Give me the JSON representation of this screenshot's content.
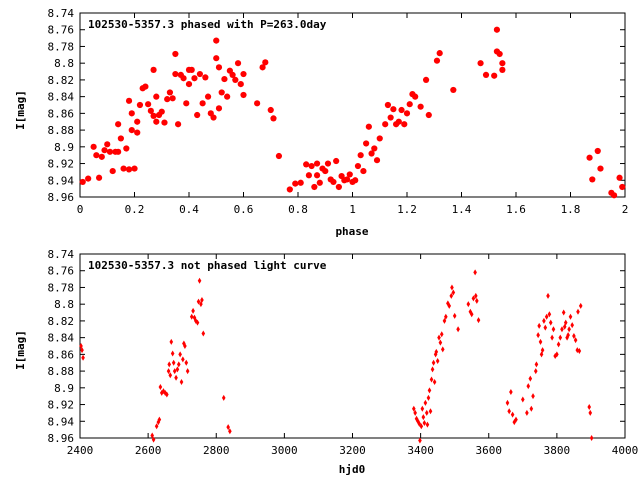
{
  "chart_data": [
    {
      "type": "scatter",
      "title": "102530-5357.3 phased with P=263.0day",
      "xlabel": "phase",
      "ylabel": "I[mag]",
      "xlim": [
        0,
        2
      ],
      "ylim": [
        8.74,
        8.96
      ],
      "y_inverted": true,
      "xticks": [
        "0",
        "0.2",
        "0.4",
        "0.6",
        "0.8",
        "1",
        "1.2",
        "1.4",
        "1.6",
        "1.8",
        "2"
      ],
      "xtick_values": [
        0,
        0.2,
        0.4,
        0.6,
        0.8,
        1,
        1.2,
        1.4,
        1.6,
        1.8,
        2
      ],
      "yticks": [
        "8.74",
        "8.76",
        "8.78",
        "8.8",
        "8.82",
        "8.84",
        "8.86",
        "8.88",
        "8.9",
        "8.92",
        "8.94",
        "8.96"
      ],
      "ytick_values": [
        8.74,
        8.76,
        8.78,
        8.8,
        8.82,
        8.84,
        8.86,
        8.88,
        8.9,
        8.92,
        8.94,
        8.96
      ],
      "marker_color": "#ff0000",
      "marker": "filled-point",
      "points": [
        [
          0.01,
          8.942
        ],
        [
          0.03,
          8.938
        ],
        [
          0.05,
          8.9
        ],
        [
          0.06,
          8.91
        ],
        [
          0.07,
          8.937
        ],
        [
          0.08,
          8.912
        ],
        [
          0.09,
          8.904
        ],
        [
          0.1,
          8.897
        ],
        [
          0.11,
          8.906
        ],
        [
          0.12,
          8.929
        ],
        [
          0.13,
          8.906
        ],
        [
          0.14,
          8.873
        ],
        [
          0.14,
          8.906
        ],
        [
          0.15,
          8.89
        ],
        [
          0.16,
          8.926
        ],
        [
          0.17,
          8.902
        ],
        [
          0.18,
          8.927
        ],
        [
          0.18,
          8.845
        ],
        [
          0.19,
          8.88
        ],
        [
          0.19,
          8.86
        ],
        [
          0.2,
          8.926
        ],
        [
          0.21,
          8.883
        ],
        [
          0.21,
          8.87
        ],
        [
          0.22,
          8.85
        ],
        [
          0.23,
          8.83
        ],
        [
          0.24,
          8.828
        ],
        [
          0.25,
          8.849
        ],
        [
          0.26,
          8.857
        ],
        [
          0.27,
          8.863
        ],
        [
          0.27,
          8.808
        ],
        [
          0.28,
          8.84
        ],
        [
          0.28,
          8.87
        ],
        [
          0.29,
          8.862
        ],
        [
          0.3,
          8.858
        ],
        [
          0.31,
          8.871
        ],
        [
          0.32,
          8.843
        ],
        [
          0.33,
          8.835
        ],
        [
          0.34,
          8.842
        ],
        [
          0.35,
          8.813
        ],
        [
          0.35,
          8.789
        ],
        [
          0.36,
          8.873
        ],
        [
          0.37,
          8.814
        ],
        [
          0.38,
          8.818
        ],
        [
          0.39,
          8.848
        ],
        [
          0.4,
          8.825
        ],
        [
          0.4,
          8.808
        ],
        [
          0.41,
          8.808
        ],
        [
          0.42,
          8.818
        ],
        [
          0.43,
          8.862
        ],
        [
          0.44,
          8.813
        ],
        [
          0.45,
          8.848
        ],
        [
          0.46,
          8.817
        ],
        [
          0.47,
          8.84
        ],
        [
          0.48,
          8.86
        ],
        [
          0.49,
          8.865
        ],
        [
          0.5,
          8.794
        ],
        [
          0.5,
          8.773
        ],
        [
          0.51,
          8.854
        ],
        [
          0.51,
          8.805
        ],
        [
          0.52,
          8.835
        ],
        [
          0.53,
          8.819
        ],
        [
          0.54,
          8.84
        ],
        [
          0.55,
          8.809
        ],
        [
          0.56,
          8.814
        ],
        [
          0.57,
          8.82
        ],
        [
          0.58,
          8.8
        ],
        [
          0.59,
          8.825
        ],
        [
          0.6,
          8.838
        ],
        [
          0.6,
          8.813
        ],
        [
          0.65,
          8.848
        ],
        [
          0.67,
          8.805
        ],
        [
          0.68,
          8.799
        ],
        [
          0.7,
          8.856
        ],
        [
          0.71,
          8.866
        ],
        [
          0.73,
          8.911
        ],
        [
          0.77,
          8.951
        ],
        [
          0.79,
          8.944
        ],
        [
          0.81,
          8.943
        ],
        [
          0.83,
          8.921
        ],
        [
          0.84,
          8.934
        ],
        [
          0.85,
          8.923
        ],
        [
          0.86,
          8.948
        ],
        [
          0.87,
          8.934
        ],
        [
          0.87,
          8.92
        ],
        [
          0.88,
          8.943
        ],
        [
          0.89,
          8.926
        ],
        [
          0.9,
          8.929
        ],
        [
          0.91,
          8.92
        ],
        [
          0.92,
          8.939
        ],
        [
          0.93,
          8.942
        ],
        [
          0.94,
          8.917
        ],
        [
          0.95,
          8.948
        ],
        [
          0.96,
          8.935
        ],
        [
          0.97,
          8.94
        ],
        [
          0.98,
          8.939
        ],
        [
          0.99,
          8.933
        ],
        [
          1.0,
          8.942
        ],
        [
          1.01,
          8.94
        ],
        [
          1.02,
          8.923
        ],
        [
          1.03,
          8.91
        ],
        [
          1.04,
          8.929
        ],
        [
          1.05,
          8.896
        ],
        [
          1.06,
          8.876
        ],
        [
          1.07,
          8.908
        ],
        [
          1.08,
          8.902
        ],
        [
          1.09,
          8.916
        ],
        [
          1.1,
          8.89
        ],
        [
          1.12,
          8.873
        ],
        [
          1.13,
          8.85
        ],
        [
          1.14,
          8.865
        ],
        [
          1.15,
          8.855
        ],
        [
          1.16,
          8.873
        ],
        [
          1.17,
          8.87
        ],
        [
          1.18,
          8.856
        ],
        [
          1.19,
          8.873
        ],
        [
          1.2,
          8.86
        ],
        [
          1.21,
          8.849
        ],
        [
          1.22,
          8.837
        ],
        [
          1.23,
          8.84
        ],
        [
          1.25,
          8.852
        ],
        [
          1.27,
          8.82
        ],
        [
          1.28,
          8.862
        ],
        [
          1.31,
          8.797
        ],
        [
          1.32,
          8.788
        ],
        [
          1.37,
          8.832
        ],
        [
          1.47,
          8.8
        ],
        [
          1.49,
          8.814
        ],
        [
          1.52,
          8.815
        ],
        [
          1.53,
          8.76
        ],
        [
          1.53,
          8.786
        ],
        [
          1.54,
          8.789
        ],
        [
          1.55,
          8.808
        ],
        [
          1.55,
          8.8
        ],
        [
          1.87,
          8.913
        ],
        [
          1.88,
          8.939
        ],
        [
          1.9,
          8.905
        ],
        [
          1.91,
          8.926
        ],
        [
          1.95,
          8.955
        ],
        [
          1.96,
          8.958
        ],
        [
          1.98,
          8.937
        ],
        [
          1.99,
          8.948
        ]
      ]
    },
    {
      "type": "scatter",
      "title": "102530-5357.3 not phased light curve",
      "xlabel": "hjd0",
      "ylabel": "I[mag]",
      "xlim": [
        2400,
        4000
      ],
      "ylim": [
        8.74,
        8.96
      ],
      "y_inverted": true,
      "xticks": [
        "2400",
        "2600",
        "2800",
        "3000",
        "3200",
        "3400",
        "3600",
        "3800",
        "4000"
      ],
      "xtick_values": [
        2400,
        2600,
        2800,
        3000,
        3200,
        3400,
        3600,
        3800,
        4000
      ],
      "yticks": [
        "8.74",
        "8.76",
        "8.78",
        "8.8",
        "8.82",
        "8.84",
        "8.86",
        "8.88",
        "8.9",
        "8.92",
        "8.94",
        "8.96"
      ],
      "ytick_values": [
        8.74,
        8.76,
        8.78,
        8.8,
        8.82,
        8.84,
        8.86,
        8.88,
        8.9,
        8.92,
        8.94,
        8.96
      ],
      "marker_color": "#ff0000",
      "marker": "small-diamond",
      "points": [
        [
          2403,
          8.85
        ],
        [
          2406,
          8.855
        ],
        [
          2409,
          8.864
        ],
        [
          2612,
          8.957
        ],
        [
          2616,
          8.962
        ],
        [
          2625,
          8.946
        ],
        [
          2630,
          8.941
        ],
        [
          2633,
          8.938
        ],
        [
          2636,
          8.899
        ],
        [
          2640,
          8.906
        ],
        [
          2645,
          8.904
        ],
        [
          2650,
          8.906
        ],
        [
          2655,
          8.908
        ],
        [
          2660,
          8.88
        ],
        [
          2662,
          8.872
        ],
        [
          2665,
          8.885
        ],
        [
          2668,
          8.845
        ],
        [
          2672,
          8.859
        ],
        [
          2675,
          8.87
        ],
        [
          2678,
          8.88
        ],
        [
          2682,
          8.888
        ],
        [
          2686,
          8.878
        ],
        [
          2690,
          8.872
        ],
        [
          2694,
          8.86
        ],
        [
          2698,
          8.893
        ],
        [
          2702,
          8.866
        ],
        [
          2705,
          8.847
        ],
        [
          2708,
          8.85
        ],
        [
          2712,
          8.87
        ],
        [
          2716,
          8.88
        ],
        [
          2728,
          8.815
        ],
        [
          2732,
          8.808
        ],
        [
          2736,
          8.816
        ],
        [
          2740,
          8.82
        ],
        [
          2745,
          8.822
        ],
        [
          2748,
          8.797
        ],
        [
          2751,
          8.772
        ],
        [
          2755,
          8.8
        ],
        [
          2758,
          8.795
        ],
        [
          2762,
          8.835
        ],
        [
          2822,
          8.912
        ],
        [
          2835,
          8.947
        ],
        [
          2840,
          8.952
        ],
        [
          3380,
          8.925
        ],
        [
          3384,
          8.93
        ],
        [
          3388,
          8.937
        ],
        [
          3392,
          8.94
        ],
        [
          3396,
          8.943
        ],
        [
          3398,
          8.963
        ],
        [
          3402,
          8.946
        ],
        [
          3405,
          8.925
        ],
        [
          3408,
          8.935
        ],
        [
          3411,
          8.942
        ],
        [
          3414,
          8.918
        ],
        [
          3418,
          8.93
        ],
        [
          3420,
          8.944
        ],
        [
          3423,
          8.912
        ],
        [
          3426,
          8.903
        ],
        [
          3429,
          8.928
        ],
        [
          3432,
          8.89
        ],
        [
          3435,
          8.878
        ],
        [
          3438,
          8.87
        ],
        [
          3441,
          8.893
        ],
        [
          3444,
          8.86
        ],
        [
          3446,
          8.857
        ],
        [
          3450,
          8.868
        ],
        [
          3454,
          8.84
        ],
        [
          3458,
          8.846
        ],
        [
          3462,
          8.836
        ],
        [
          3465,
          8.854
        ],
        [
          3470,
          8.82
        ],
        [
          3474,
          8.815
        ],
        [
          3480,
          8.799
        ],
        [
          3484,
          8.802
        ],
        [
          3490,
          8.79
        ],
        [
          3492,
          8.78
        ],
        [
          3496,
          8.786
        ],
        [
          3500,
          8.814
        ],
        [
          3510,
          8.83
        ],
        [
          3540,
          8.8
        ],
        [
          3546,
          8.809
        ],
        [
          3550,
          8.812
        ],
        [
          3555,
          8.793
        ],
        [
          3560,
          8.762
        ],
        [
          3562,
          8.79
        ],
        [
          3565,
          8.796
        ],
        [
          3570,
          8.819
        ],
        [
          3655,
          8.918
        ],
        [
          3660,
          8.928
        ],
        [
          3665,
          8.905
        ],
        [
          3670,
          8.932
        ],
        [
          3675,
          8.941
        ],
        [
          3680,
          8.938
        ],
        [
          3700,
          8.914
        ],
        [
          3712,
          8.93
        ],
        [
          3716,
          8.898
        ],
        [
          3722,
          8.889
        ],
        [
          3725,
          8.925
        ],
        [
          3730,
          8.91
        ],
        [
          3738,
          8.88
        ],
        [
          3740,
          8.872
        ],
        [
          3745,
          8.837
        ],
        [
          3748,
          8.826
        ],
        [
          3752,
          8.845
        ],
        [
          3755,
          8.86
        ],
        [
          3758,
          8.855
        ],
        [
          3762,
          8.82
        ],
        [
          3766,
          8.828
        ],
        [
          3770,
          8.815
        ],
        [
          3774,
          8.79
        ],
        [
          3778,
          8.812
        ],
        [
          3782,
          8.822
        ],
        [
          3786,
          8.84
        ],
        [
          3790,
          8.83
        ],
        [
          3795,
          8.862
        ],
        [
          3800,
          8.86
        ],
        [
          3805,
          8.848
        ],
        [
          3810,
          8.84
        ],
        [
          3815,
          8.83
        ],
        [
          3820,
          8.81
        ],
        [
          3823,
          8.827
        ],
        [
          3826,
          8.822
        ],
        [
          3830,
          8.84
        ],
        [
          3833,
          8.837
        ],
        [
          3836,
          8.83
        ],
        [
          3840,
          8.815
        ],
        [
          3845,
          8.825
        ],
        [
          3850,
          8.838
        ],
        [
          3855,
          8.843
        ],
        [
          3860,
          8.855
        ],
        [
          3862,
          8.809
        ],
        [
          3866,
          8.856
        ],
        [
          3870,
          8.802
        ],
        [
          3895,
          8.923
        ],
        [
          3898,
          8.93
        ],
        [
          3902,
          8.96
        ]
      ]
    }
  ]
}
